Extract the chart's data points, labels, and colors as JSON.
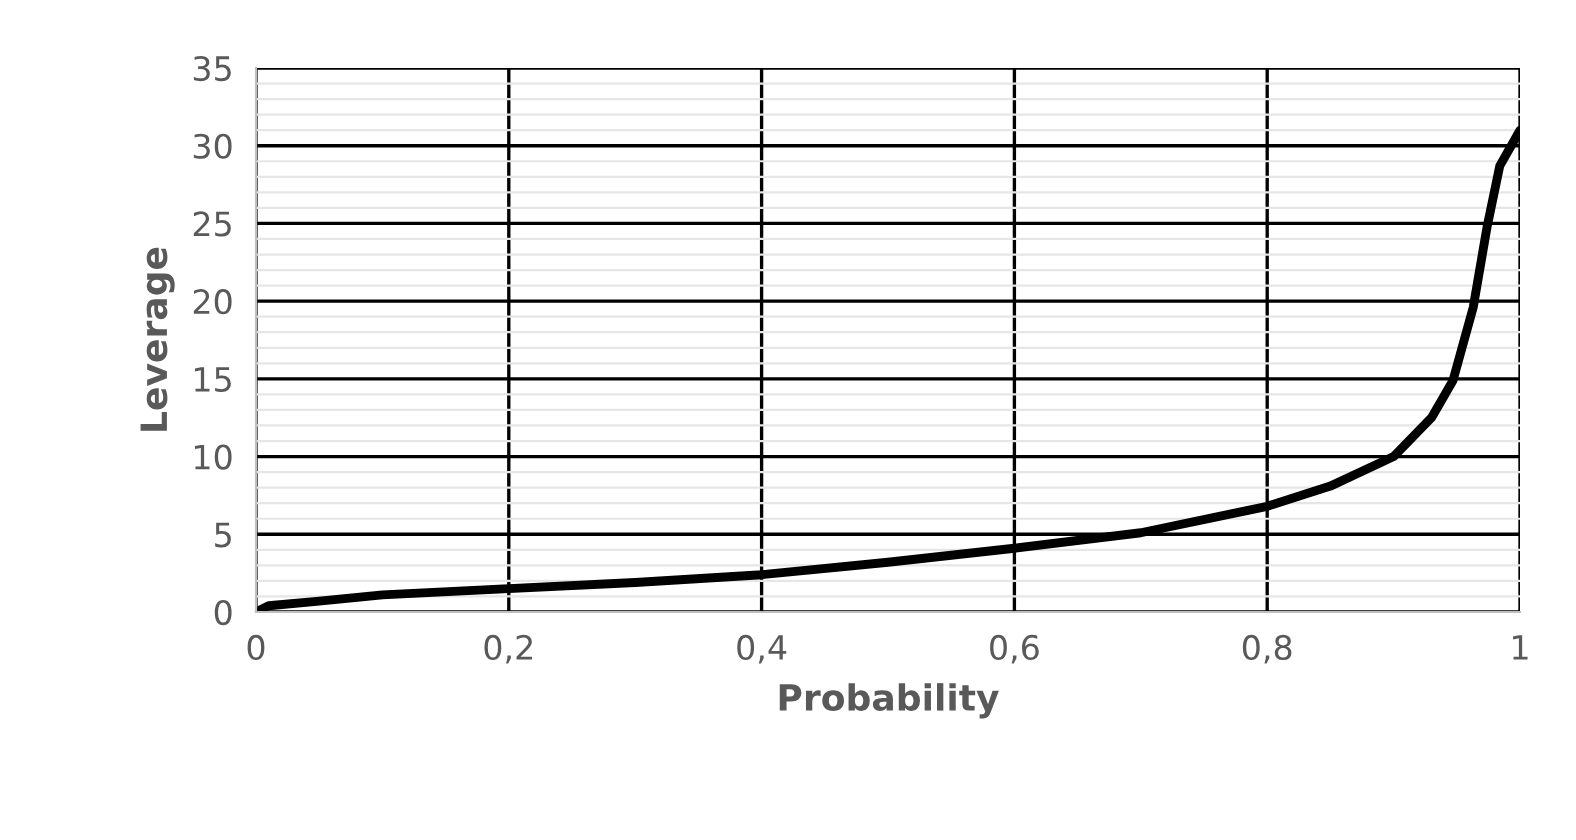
{
  "chart_data": {
    "type": "line",
    "xlabel": "Probability",
    "ylabel": "Leverage",
    "x": [
      0,
      0.01,
      0.05,
      0.1,
      0.2,
      0.3,
      0.4,
      0.5,
      0.6,
      0.7,
      0.8,
      0.85,
      0.9,
      0.93,
      0.947,
      0.963,
      0.974,
      0.984,
      1
    ],
    "series": [
      {
        "color": "#000000",
        "values": [
          0,
          0.4,
          0.7,
          1.1,
          1.5,
          1.9,
          2.4,
          3.2,
          4.1,
          5.1,
          6.8,
          8.1,
          10.0,
          12.5,
          14.9,
          19.6,
          24.8,
          28.7,
          31.0
        ]
      }
    ],
    "xlim": [
      0,
      1
    ],
    "ylim": [
      0,
      35
    ],
    "xticks": [
      {
        "value": 0,
        "label": "0"
      },
      {
        "value": 0.2,
        "label": "0,2"
      },
      {
        "value": 0.4,
        "label": "0,4"
      },
      {
        "value": 0.6,
        "label": "0,6"
      },
      {
        "value": 0.8,
        "label": "0,8"
      },
      {
        "value": 1,
        "label": "1"
      }
    ],
    "yticks": [
      0,
      5,
      10,
      15,
      20,
      25,
      30,
      35
    ],
    "grid": true,
    "line_style": "solid",
    "marker": "none",
    "legend": false
  }
}
